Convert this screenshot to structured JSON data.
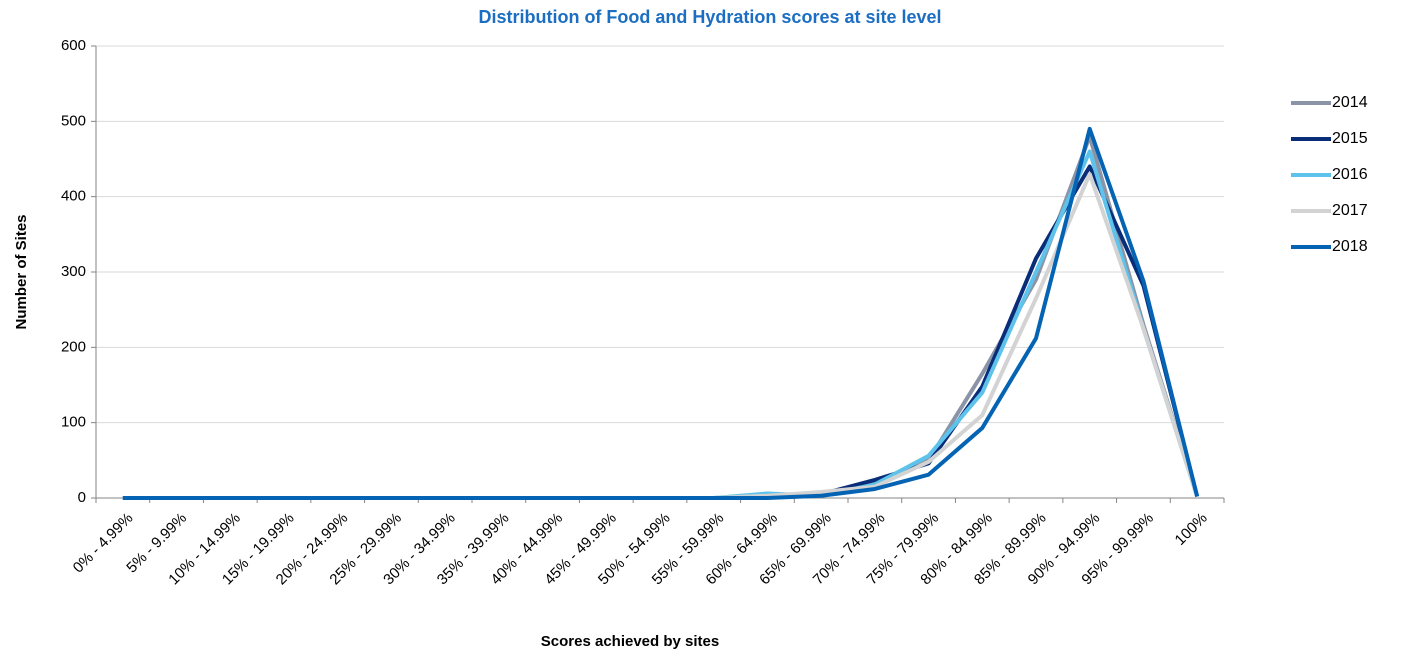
{
  "chart_data": {
    "type": "line",
    "title": "Distribution of Food and Hydration scores at site level",
    "x_label": "Scores achieved by sites",
    "y_label": "Number of Sites",
    "categories": [
      "0% - 4.99%",
      "5% - 9.99%",
      "10% - 14.99%",
      "15% - 19.99%",
      "20% - 24.99%",
      "25% - 29.99%",
      "30% - 34.99%",
      "35% - 39.99%",
      "40% - 44.99%",
      "45% - 49.99%",
      "50% - 54.99%",
      "55% - 59.99%",
      "60% - 64.99%",
      "65% - 69.99%",
      "70% - 74.99%",
      "75% - 79.99%",
      "80% - 84.99%",
      "85% - 89.99%",
      "90% - 94.99%",
      "95% - 99.99%",
      "100%"
    ],
    "series": [
      {
        "name": "2014",
        "color": "#8a94a6",
        "values": [
          0,
          0,
          0,
          0,
          0,
          0,
          0,
          0,
          0,
          0,
          0,
          0,
          1,
          5,
          20,
          50,
          165,
          290,
          480,
          230,
          2
        ]
      },
      {
        "name": "2015",
        "color": "#0a2d7a",
        "values": [
          0,
          0,
          0,
          0,
          0,
          0,
          0,
          0,
          0,
          0,
          0,
          0,
          1,
          5,
          24,
          46,
          148,
          318,
          440,
          282,
          2
        ]
      },
      {
        "name": "2016",
        "color": "#5ec3ea",
        "values": [
          0,
          0,
          0,
          0,
          0,
          0,
          0,
          0,
          0,
          0,
          0,
          0,
          6,
          3,
          18,
          56,
          140,
          300,
          460,
          225,
          2
        ]
      },
      {
        "name": "2017",
        "color": "#d3d3d3",
        "values": [
          0,
          0,
          0,
          0,
          0,
          0,
          0,
          0,
          0,
          0,
          0,
          0,
          3,
          8,
          15,
          48,
          110,
          265,
          430,
          225,
          2
        ]
      },
      {
        "name": "2018",
        "color": "#0563b4",
        "values": [
          0,
          0,
          0,
          0,
          0,
          0,
          0,
          0,
          0,
          0,
          0,
          0,
          0,
          3,
          12,
          31,
          93,
          212,
          490,
          288,
          2
        ]
      }
    ],
    "ylim": [
      0,
      600
    ],
    "yticks": [
      0,
      100,
      200,
      300,
      400,
      500,
      600
    ],
    "grid": true,
    "legend": "right"
  }
}
